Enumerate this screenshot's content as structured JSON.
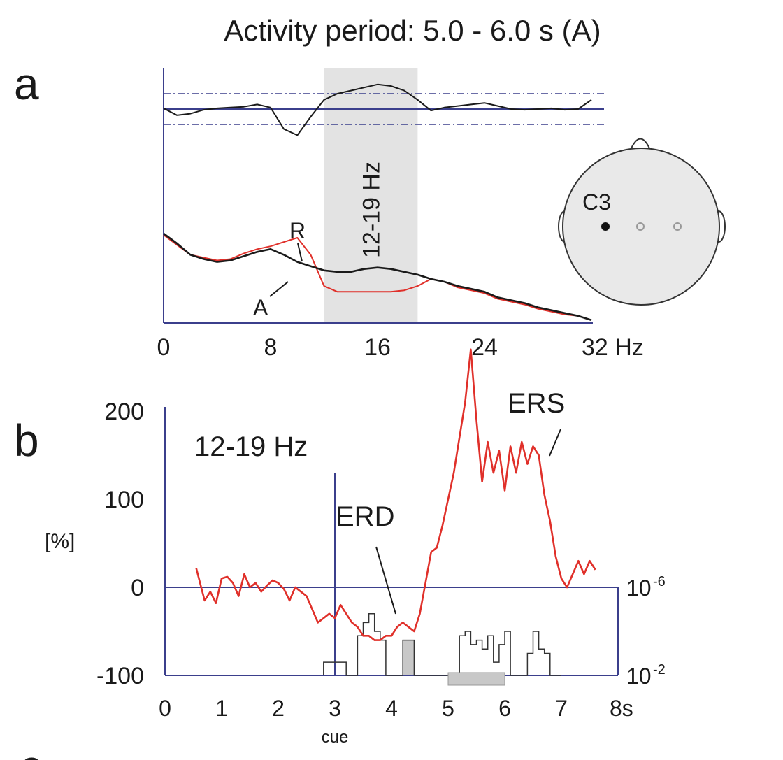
{
  "figure": {
    "title": "Activity period: 5.0 - 6.0 s (A)",
    "panel_a_label": "a",
    "panel_b_label": "b",
    "bottom_partial_label": "c"
  },
  "colors": {
    "axis": "#3b3f8c",
    "red": "#e0302a",
    "black": "#1a1a1a",
    "shade": "#e3e3e3",
    "hist_fill": "#c8c8c8"
  },
  "chart_data": [
    {
      "id": "panel-a",
      "type": "line",
      "band_label": "12-19 Hz",
      "band": [
        12,
        19
      ],
      "x_ticks": [
        "0",
        "8",
        "16",
        "24",
        "32 Hz"
      ],
      "x_tick_values": [
        0,
        8,
        16,
        24,
        32
      ],
      "xlim": [
        0,
        32
      ],
      "series": [
        {
          "name": "R",
          "color": "#e0302a",
          "panel": "spectrum",
          "x": [
            0,
            1,
            2,
            3,
            4,
            5,
            6,
            7,
            8,
            9,
            10,
            11,
            12,
            13,
            14,
            15,
            16,
            17,
            18,
            19,
            20,
            21,
            22,
            23,
            24,
            25,
            26,
            27,
            28,
            29,
            30,
            31,
            32
          ],
          "y": [
            0.62,
            0.55,
            0.48,
            0.46,
            0.44,
            0.45,
            0.49,
            0.52,
            0.54,
            0.57,
            0.6,
            0.48,
            0.26,
            0.22,
            0.22,
            0.22,
            0.22,
            0.22,
            0.23,
            0.26,
            0.31,
            0.29,
            0.25,
            0.23,
            0.21,
            0.17,
            0.15,
            0.13,
            0.1,
            0.08,
            0.06,
            0.05,
            0.02
          ]
        },
        {
          "name": "A",
          "color": "#1a1a1a",
          "panel": "spectrum",
          "x": [
            0,
            1,
            2,
            3,
            4,
            5,
            6,
            7,
            8,
            9,
            10,
            11,
            12,
            13,
            14,
            15,
            16,
            17,
            18,
            19,
            20,
            21,
            22,
            23,
            24,
            25,
            26,
            27,
            28,
            29,
            30,
            31,
            32
          ],
          "y": [
            0.63,
            0.56,
            0.48,
            0.45,
            0.43,
            0.44,
            0.47,
            0.5,
            0.52,
            0.48,
            0.43,
            0.4,
            0.37,
            0.36,
            0.36,
            0.38,
            0.39,
            0.38,
            0.36,
            0.34,
            0.31,
            0.29,
            0.26,
            0.24,
            0.22,
            0.18,
            0.16,
            0.14,
            0.11,
            0.09,
            0.07,
            0.05,
            0.02
          ]
        },
        {
          "name": "",
          "color": "#1a1a1a",
          "panel": "significance",
          "x": [
            0,
            1,
            2,
            3,
            4,
            5,
            6,
            7,
            8,
            9,
            10,
            11,
            12,
            13,
            14,
            15,
            16,
            17,
            18,
            19,
            20,
            21,
            22,
            23,
            24,
            25,
            26,
            27,
            28,
            29,
            30,
            31,
            32
          ],
          "y": [
            0.05,
            -0.4,
            -0.3,
            -0.05,
            0.05,
            0.1,
            0.15,
            0.3,
            0.1,
            -1.3,
            -1.7,
            -0.5,
            0.6,
            1.0,
            1.2,
            1.4,
            1.6,
            1.5,
            1.2,
            0.6,
            -0.1,
            0.1,
            0.2,
            0.3,
            0.4,
            0.2,
            0.0,
            -0.05,
            0.0,
            0.05,
            -0.05,
            0.0,
            0.6
          ]
        }
      ]
    },
    {
      "id": "panel-b",
      "type": "line",
      "band_label": "12-19 Hz",
      "ylabel": "[%]",
      "y_ticks": [
        "200",
        "100",
        "0",
        "-100"
      ],
      "y_tick_values": [
        200,
        100,
        0,
        -100
      ],
      "ylim": [
        -100,
        200
      ],
      "x_ticks": [
        "0",
        "1",
        "2",
        "3",
        "4",
        "5",
        "6",
        "7",
        "8s"
      ],
      "x_tick_values": [
        0,
        1,
        2,
        3,
        4,
        5,
        6,
        7,
        8
      ],
      "xlim": [
        0,
        8
      ],
      "right_ticks": [
        "10",
        "10"
      ],
      "right_exponents": [
        "-6",
        "-2"
      ],
      "cue_label": "cue",
      "cue_time": 3,
      "activity_period": [
        5.0,
        6.0
      ],
      "annotations": [
        {
          "text": "ERD",
          "x": 4.2,
          "y": -50
        },
        {
          "text": "ERS",
          "x": 5.7,
          "y": 150
        }
      ],
      "series": [
        {
          "name": "",
          "color": "#e0302a",
          "x": [
            0.55,
            0.7,
            0.8,
            0.9,
            1.0,
            1.1,
            1.2,
            1.3,
            1.4,
            1.5,
            1.6,
            1.7,
            1.8,
            1.9,
            2.0,
            2.1,
            2.2,
            2.3,
            2.4,
            2.5,
            2.6,
            2.7,
            2.8,
            2.9,
            3.0,
            3.1,
            3.2,
            3.3,
            3.4,
            3.5,
            3.6,
            3.7,
            3.8,
            3.9,
            4.0,
            4.1,
            4.2,
            4.3,
            4.4,
            4.5,
            4.6,
            4.7,
            4.8,
            4.9,
            5.0,
            5.1,
            5.2,
            5.3,
            5.4,
            5.5,
            5.6,
            5.7,
            5.8,
            5.9,
            6.0,
            6.1,
            6.2,
            6.3,
            6.4,
            6.5,
            6.6,
            6.7,
            6.8,
            6.9,
            7.0,
            7.1,
            7.2,
            7.3,
            7.4,
            7.5,
            7.6
          ],
          "y": [
            22,
            -15,
            -5,
            -18,
            10,
            12,
            5,
            -10,
            15,
            0,
            5,
            -5,
            2,
            8,
            5,
            -2,
            -15,
            0,
            -5,
            -10,
            -25,
            -40,
            -35,
            -30,
            -35,
            -20,
            -30,
            -40,
            -45,
            -55,
            -55,
            -60,
            -60,
            -55,
            -55,
            -45,
            -40,
            -45,
            -50,
            -30,
            5,
            40,
            45,
            70,
            100,
            130,
            170,
            210,
            270,
            190,
            120,
            165,
            130,
            155,
            110,
            160,
            130,
            165,
            140,
            160,
            150,
            105,
            75,
            35,
            10,
            0,
            15,
            30,
            15,
            30,
            20
          ]
        }
      ],
      "histogram": {
        "x": [
          2.8,
          2.9,
          3.0,
          3.1,
          3.2,
          3.3,
          3.4,
          3.5,
          3.6,
          3.7,
          3.8,
          3.9,
          4.0,
          4.1,
          4.2,
          4.3,
          4.4,
          4.5,
          4.6,
          4.7,
          4.8,
          4.9,
          5.0,
          5.1,
          5.2,
          5.3,
          5.4,
          5.5,
          5.6,
          5.7,
          5.8,
          5.9,
          6.0,
          6.1,
          6.2,
          6.3,
          6.4,
          6.5,
          6.6,
          6.7,
          6.8,
          6.9
        ],
        "y": [
          0.15,
          0.15,
          0.15,
          0.15,
          0.0,
          0.0,
          0.45,
          0.6,
          0.7,
          0.5,
          0.4,
          0.0,
          0.0,
          0.0,
          0.4,
          0.4,
          0.0,
          0.0,
          0.0,
          0.0,
          0.0,
          0.0,
          0.0,
          0.0,
          0.45,
          0.5,
          0.35,
          0.4,
          0.3,
          0.45,
          0.15,
          0.35,
          0.5,
          0.0,
          0.0,
          0.0,
          0.25,
          0.5,
          0.3,
          0.25,
          0.0,
          0.0
        ]
      }
    }
  ],
  "head_map": {
    "electrode_label": "C3"
  }
}
